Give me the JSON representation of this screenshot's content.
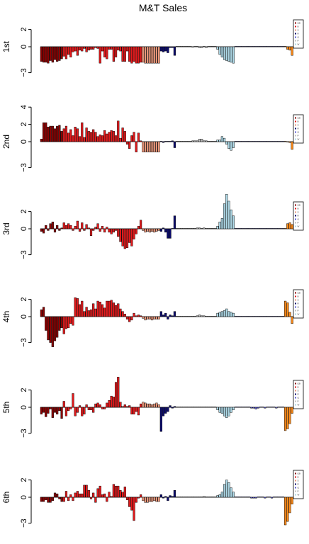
{
  "title": "M&T Sales",
  "chart_data": {
    "type": "bar",
    "title": "M&T Sales",
    "ylim": [
      -3,
      3
    ],
    "legend_placement": "right",
    "legend_entries": [
      "QB",
      "B",
      "S",
      "R",
      "Q",
      "P",
      "W"
    ],
    "groups": [
      {
        "name": "g1",
        "color": "#8b0000",
        "count": 10
      },
      {
        "name": "g2",
        "color": "#e31a1c",
        "count": 35
      },
      {
        "name": "g3",
        "color": "#e9967a",
        "count": 8
      },
      {
        "name": "g4",
        "color": "#0b0b6e",
        "count": 7
      },
      {
        "name": "g5",
        "color": "#c1c1c1",
        "count": 18
      },
      {
        "name": "g6",
        "color": "#add8e6",
        "count": 8
      },
      {
        "name": "g7",
        "color": "#5c5cd6",
        "count": 22
      },
      {
        "name": "g8",
        "color": "#ff8c1a",
        "count": 4
      }
    ],
    "panels": [
      {
        "label": "1st",
        "yticks": [
          2,
          0,
          -3
        ],
        "values": [
          -1.7,
          -1.8,
          -1.8,
          -1.9,
          -1.6,
          -1.8,
          -1.5,
          -1.7,
          -1.6,
          -1.4,
          -1.1,
          -1.4,
          -0.9,
          -1.2,
          -0.6,
          -0.5,
          -1.0,
          -0.4,
          -0.5,
          -0.2,
          -0.6,
          -0.4,
          -0.3,
          -0.3,
          -0.1,
          -0.2,
          -1.9,
          -0.5,
          -1.2,
          -1.4,
          -0.3,
          -0.3,
          -1.7,
          -1.2,
          -0.4,
          -0.5,
          -1.7,
          -1.7,
          -0.5,
          -1.7,
          -1.9,
          -1.7,
          -1.9,
          -1.9,
          -1.8,
          -1.8,
          -1.9,
          -1.9,
          -1.9,
          -1.9,
          -1.9,
          -1.9,
          -1.9,
          -0.5,
          -0.6,
          -0.5,
          -0.7,
          -0.1,
          -0.1,
          -1.0,
          0,
          0,
          0,
          0,
          0,
          0,
          0,
          -0.05,
          0,
          0,
          -0.1,
          -0.1,
          0,
          -0.1,
          0,
          0,
          0,
          0,
          -0.3,
          -0.9,
          -1.2,
          -1.5,
          -1.6,
          -1.7,
          -1.8,
          -1.9,
          0,
          0,
          0,
          0,
          0,
          0,
          0,
          0,
          0,
          0,
          0,
          0,
          0,
          0,
          0,
          0,
          0,
          0,
          0,
          0,
          0,
          0,
          0,
          -0.3,
          -0.4,
          -1.0
        ]
      },
      {
        "label": "2nd",
        "yticks": [
          4,
          2,
          0,
          -3
        ],
        "values": [
          0.3,
          2.2,
          2.2,
          1.7,
          1.8,
          1.8,
          1.5,
          1.8,
          1.9,
          1.2,
          1.5,
          1.8,
          1.0,
          1.4,
          0.7,
          1.7,
          1.5,
          0.6,
          2.2,
          0.5,
          1.6,
          1.2,
          1.1,
          1.4,
          1.1,
          0.6,
          0.8,
          0.7,
          1.3,
          0.9,
          1.1,
          1.3,
          1.2,
          0.7,
          2.4,
          0.4,
          1.6,
          1.2,
          -0.3,
          -0.8,
          0.7,
          1.1,
          -1.2,
          1.0,
          0.1,
          -1.2,
          -1.2,
          -1.2,
          -1.2,
          -1.2,
          -1.2,
          -1.2,
          -1.2,
          0,
          -0.1,
          0,
          0,
          0,
          0.1,
          -0.7,
          0,
          0,
          0,
          0,
          0,
          0,
          0,
          0.1,
          0.1,
          0.1,
          0.3,
          0.3,
          0.1,
          0.1,
          0,
          0,
          0,
          0,
          0.2,
          0.2,
          0.6,
          0.4,
          -0.3,
          -0.8,
          -1.0,
          -0.7,
          0,
          0,
          0,
          0,
          0,
          0,
          0,
          0,
          0,
          0,
          0,
          0,
          0,
          0,
          0,
          0,
          0,
          0,
          0,
          0,
          0,
          0,
          0,
          -0.05,
          -0.1,
          -0.9
        ]
      },
      {
        "label": "3rd",
        "yticks": [
          2,
          0,
          -3
        ],
        "values": [
          -0.3,
          -0.5,
          0.4,
          -0.2,
          0.6,
          0.8,
          -0.4,
          0.4,
          -0.2,
          0.1,
          0.7,
          0.4,
          0.6,
          0.4,
          -0.2,
          0.3,
          0.9,
          -0.3,
          0.7,
          -0.2,
          0.5,
          0.1,
          -0.8,
          -0.2,
          0.2,
          0.6,
          -0.3,
          0.3,
          -0.4,
          0.2,
          -0.4,
          -0.6,
          -0.4,
          -0.2,
          -0.9,
          -1.5,
          -2.0,
          -2.3,
          -2.2,
          -1.6,
          -2.0,
          -1.2,
          -0.6,
          0.3,
          1.0,
          -0.2,
          -0.4,
          -0.3,
          -0.4,
          -0.3,
          -0.4,
          -0.3,
          -0.2,
          -0.3,
          0.1,
          -0.4,
          -1.1,
          -1.1,
          0,
          1.5,
          0,
          0.05,
          0,
          0,
          0,
          0,
          0,
          0,
          0,
          0.1,
          0.1,
          0,
          0.1,
          0,
          0,
          0,
          0,
          0,
          0.3,
          0.8,
          1.2,
          2.9,
          4.0,
          3.2,
          2.2,
          1.5,
          0,
          0,
          0,
          0,
          0,
          0,
          0,
          0,
          0,
          0,
          0,
          0,
          0,
          0,
          0,
          0,
          0,
          0,
          0,
          0,
          0,
          0,
          0,
          0.6,
          0.7,
          0.5
        ]
      },
      {
        "label": "4th",
        "yticks": [
          2,
          0,
          -3
        ],
        "values": [
          0.8,
          1.1,
          -1.6,
          -2.7,
          -3.0,
          -3.5,
          -2.8,
          -2.4,
          -1.6,
          -1.3,
          -2.0,
          -1.4,
          -1.3,
          -0.8,
          -1.0,
          2.2,
          2.1,
          1.4,
          1.8,
          0.6,
          1.1,
          0.7,
          0.8,
          1.5,
          0.9,
          1.8,
          1.7,
          1.4,
          1.0,
          1.8,
          1.8,
          1.9,
          1.6,
          1.3,
          1.5,
          0.9,
          0.6,
          0.3,
          -0.3,
          -0.6,
          -0.4,
          0.4,
          0.1,
          0.2,
          0.1,
          -0.2,
          -0.4,
          -0.3,
          -0.3,
          -0.4,
          -0.3,
          -0.3,
          -0.3,
          0.6,
          0.2,
          0.4,
          -0.3,
          0.2,
          0.1,
          0.6,
          0,
          0,
          0,
          0,
          0,
          0,
          0,
          0.05,
          0,
          0.1,
          0.2,
          0.1,
          0.1,
          0,
          0,
          0,
          0,
          0,
          0.4,
          0.5,
          0.6,
          0.7,
          0.9,
          0.6,
          0.5,
          0.4,
          0,
          0,
          0,
          0,
          0,
          0,
          0,
          0,
          0,
          0,
          0,
          0,
          0,
          0,
          0,
          0,
          0,
          0,
          0,
          0,
          0,
          0,
          1.8,
          1.6,
          0.5,
          -0.8
        ]
      },
      {
        "label": "5th",
        "yticks": [
          2,
          0,
          -3
        ],
        "values": [
          -0.8,
          -0.6,
          -1.1,
          -0.7,
          -0.2,
          -1.2,
          -0.6,
          -0.8,
          -0.4,
          -1.3,
          0.7,
          -1.0,
          -0.4,
          -0.2,
          1.6,
          -1.0,
          -0.6,
          0.2,
          -1.0,
          -0.8,
          0.3,
          -0.3,
          -0.3,
          -0.6,
          0.4,
          0.5,
          0.3,
          -0.2,
          -0.2,
          0.5,
          0.8,
          1.3,
          1.2,
          2.9,
          3.5,
          0.6,
          0.1,
          0.3,
          0.1,
          0.2,
          -0.8,
          -0.8,
          -0.5,
          -0.9,
          0.4,
          0.6,
          0.5,
          0.4,
          0.4,
          0.3,
          0.4,
          0.5,
          0.3,
          -2.8,
          -1.0,
          -0.7,
          -0.5,
          0.2,
          -0.1,
          0.1,
          0,
          0,
          0,
          0,
          0,
          0,
          0,
          0,
          0,
          0,
          0,
          0,
          0,
          0,
          0,
          0,
          0,
          0,
          -0.3,
          -0.6,
          -0.7,
          -1.0,
          -1.2,
          -1.0,
          -0.6,
          -0.3,
          0,
          0,
          0,
          0,
          0,
          0,
          0,
          -0.1,
          -0.1,
          -0.2,
          -0.1,
          0,
          0,
          -0.1,
          0,
          0,
          0,
          0,
          -0.1,
          0,
          0,
          0,
          -2.7,
          -2.5,
          -1.9,
          -0.7
        ]
      },
      {
        "label": "6th",
        "yticks": [
          2,
          0,
          -3
        ],
        "values": [
          -0.5,
          -0.5,
          -0.3,
          -0.6,
          -0.6,
          -0.4,
          0.5,
          0.4,
          -0.2,
          -0.5,
          -0.5,
          0.7,
          -0.4,
          0.3,
          -0.4,
          0.5,
          0.7,
          0.4,
          0.4,
          1.4,
          1.4,
          0.8,
          -0.2,
          0.5,
          -0.6,
          1.0,
          1.3,
          0.3,
          0.4,
          -0.5,
          0.6,
          0.1,
          1.5,
          1.3,
          1.3,
          0.8,
          0.6,
          1.2,
          -0.3,
          -1.1,
          -1.5,
          -2.7,
          -0.6,
          -0.1,
          0.3,
          -0.4,
          -0.6,
          -0.6,
          -0.5,
          -0.5,
          -0.4,
          -0.5,
          -0.5,
          0.3,
          -0.1,
          0.1,
          -0.4,
          0.2,
          0.1,
          0.8,
          0,
          0,
          0,
          0,
          0,
          0,
          0,
          0,
          0,
          0,
          0,
          0,
          0.1,
          0,
          0,
          0,
          0,
          0,
          0.2,
          0.3,
          0.6,
          1.5,
          2.0,
          1.7,
          1.1,
          0.6,
          0,
          0,
          0,
          0,
          0,
          0,
          0,
          -0.1,
          -0.1,
          -0.1,
          0,
          0,
          0,
          -0.1,
          0,
          0,
          -0.1,
          0,
          0,
          0,
          0,
          0,
          -3.2,
          -2.8,
          -1.8,
          -0.8
        ]
      }
    ]
  }
}
